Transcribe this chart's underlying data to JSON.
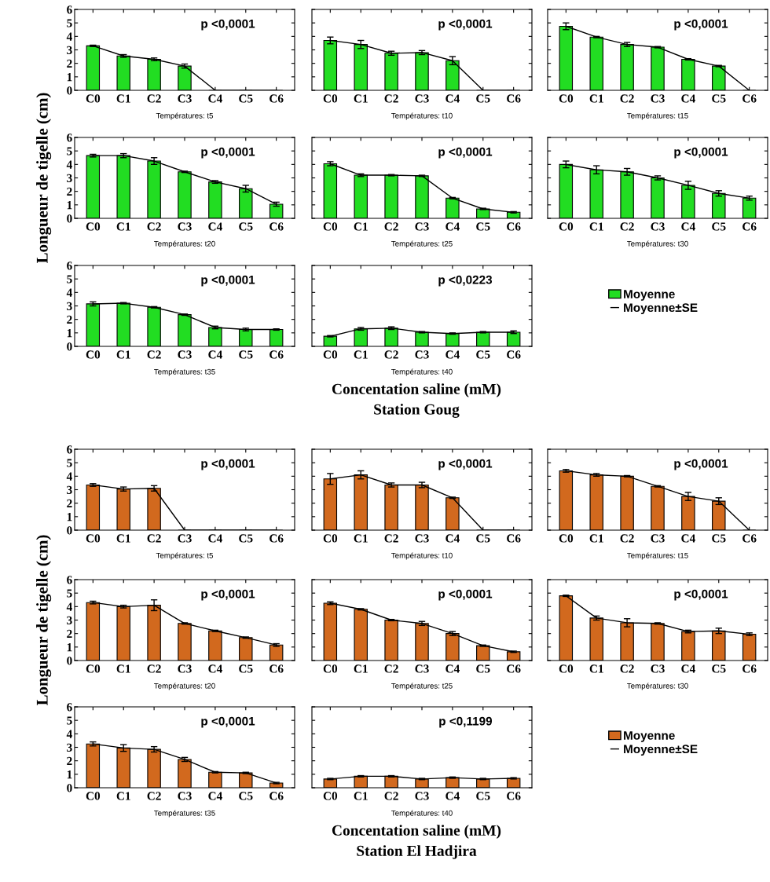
{
  "chart_data": [
    {
      "type": "bar",
      "categories": [
        "C0",
        "C1",
        "C2",
        "C3",
        "C4",
        "C5",
        "C6"
      ],
      "xlabel": "Températures: t5",
      "ylim": [
        0,
        6
      ],
      "yticks": [
        0,
        1,
        2,
        3,
        4,
        5,
        6
      ],
      "tick_labels": "xy",
      "annotations": [
        "p <0,0001"
      ],
      "series": [
        {
          "color": "#22dd22",
          "values": [
            3.3,
            2.55,
            2.3,
            1.8,
            0,
            0,
            0
          ],
          "errors": [
            0.05,
            0.1,
            0.1,
            0.15,
            null,
            null,
            null
          ]
        },
        {
          "type": "line",
          "color": "#000000",
          "values": [
            3.3,
            2.55,
            2.3,
            1.8,
            0,
            0,
            0
          ]
        }
      ]
    },
    {
      "type": "bar",
      "categories": [
        "C0",
        "C1",
        "C2",
        "C3",
        "C4",
        "C5",
        "C6"
      ],
      "xlabel": "Températures: t10",
      "ylim": [
        0,
        6
      ],
      "yticks": [
        0,
        1,
        2,
        3,
        4,
        5,
        6
      ],
      "tick_labels": "x",
      "annotations": [
        "p <0,0001"
      ],
      "series": [
        {
          "color": "#22dd22",
          "values": [
            3.7,
            3.4,
            2.75,
            2.8,
            2.2,
            0,
            0
          ],
          "errors": [
            0.25,
            0.3,
            0.15,
            0.15,
            0.3,
            null,
            null
          ]
        },
        {
          "type": "line",
          "color": "#000000",
          "values": [
            3.7,
            3.4,
            2.75,
            2.8,
            2.2,
            0,
            0
          ]
        }
      ]
    },
    {
      "type": "bar",
      "categories": [
        "C0",
        "C1",
        "C2",
        "C3",
        "C4",
        "C5",
        "C6"
      ],
      "xlabel": "Températures: t15",
      "ylim": [
        0,
        6
      ],
      "yticks": [
        0,
        1,
        2,
        3,
        4,
        5,
        6
      ],
      "tick_labels": "x",
      "annotations": [
        "p <0,0001"
      ],
      "series": [
        {
          "color": "#22dd22",
          "values": [
            4.75,
            3.95,
            3.4,
            3.2,
            2.3,
            1.8,
            0
          ],
          "errors": [
            0.25,
            0.05,
            0.15,
            0.05,
            0.05,
            0.05,
            null
          ]
        },
        {
          "type": "line",
          "color": "#000000",
          "values": [
            4.75,
            3.95,
            3.4,
            3.2,
            2.3,
            1.8,
            0
          ]
        }
      ]
    },
    {
      "type": "bar",
      "categories": [
        "C0",
        "C1",
        "C2",
        "C3",
        "C4",
        "C5",
        "C6"
      ],
      "xlabel": "Températures: t20",
      "ylabel": "Longueur de tigelle (cm)",
      "ylim": [
        0,
        6
      ],
      "yticks": [
        0,
        1,
        2,
        3,
        4,
        5,
        6
      ],
      "tick_labels": "xy",
      "annotations": [
        "p <0,0001"
      ],
      "series": [
        {
          "color": "#22dd22",
          "values": [
            4.65,
            4.65,
            4.25,
            3.45,
            2.7,
            2.2,
            1.05
          ],
          "errors": [
            0.1,
            0.15,
            0.25,
            0.05,
            0.1,
            0.25,
            0.15
          ]
        },
        {
          "type": "line",
          "color": "#000000",
          "values": [
            4.65,
            4.65,
            4.25,
            3.45,
            2.7,
            2.2,
            1.05
          ]
        }
      ]
    },
    {
      "type": "bar",
      "categories": [
        "C0",
        "C1",
        "C2",
        "C3",
        "C4",
        "C5",
        "C6"
      ],
      "xlabel": "Températures: t25",
      "ylim": [
        0,
        6
      ],
      "yticks": [
        0,
        1,
        2,
        3,
        4,
        5,
        6
      ],
      "tick_labels": "x",
      "annotations": [
        "p <0,0001"
      ],
      "series": [
        {
          "color": "#22dd22",
          "values": [
            4.05,
            3.2,
            3.2,
            3.15,
            1.5,
            0.7,
            0.45
          ],
          "errors": [
            0.15,
            0.1,
            0.05,
            0.05,
            0.05,
            0.05,
            0.05
          ]
        },
        {
          "type": "line",
          "color": "#000000",
          "values": [
            4.05,
            3.2,
            3.2,
            3.15,
            1.5,
            0.7,
            0.45
          ]
        }
      ]
    },
    {
      "type": "bar",
      "categories": [
        "C0",
        "C1",
        "C2",
        "C3",
        "C4",
        "C5",
        "C6"
      ],
      "xlabel": "Températures: t30",
      "ylim": [
        0,
        6
      ],
      "yticks": [
        0,
        1,
        2,
        3,
        4,
        5,
        6
      ],
      "tick_labels": "x",
      "annotations": [
        "p <0,0001"
      ],
      "series": [
        {
          "color": "#22dd22",
          "values": [
            4.0,
            3.6,
            3.45,
            3.0,
            2.45,
            1.85,
            1.5
          ],
          "errors": [
            0.25,
            0.3,
            0.25,
            0.15,
            0.3,
            0.2,
            0.15
          ]
        },
        {
          "type": "line",
          "color": "#000000",
          "values": [
            4.0,
            3.6,
            3.45,
            3.0,
            2.45,
            1.85,
            1.5
          ]
        }
      ]
    },
    {
      "type": "bar",
      "categories": [
        "C0",
        "C1",
        "C2",
        "C3",
        "C4",
        "C5",
        "C6"
      ],
      "xlabel": "Températures: t35",
      "ylim": [
        0,
        6
      ],
      "yticks": [
        0,
        1,
        2,
        3,
        4,
        5,
        6
      ],
      "tick_labels": "xy",
      "annotations": [
        "p <0,0001"
      ],
      "series": [
        {
          "color": "#22dd22",
          "values": [
            3.15,
            3.2,
            2.9,
            2.35,
            1.4,
            1.25,
            1.25
          ],
          "errors": [
            0.15,
            0.05,
            0.05,
            0.05,
            0.1,
            0.1,
            0.05
          ]
        },
        {
          "type": "line",
          "color": "#000000",
          "values": [
            3.15,
            3.2,
            2.9,
            2.35,
            1.4,
            1.25,
            1.25
          ]
        }
      ]
    },
    {
      "type": "bar",
      "categories": [
        "C0",
        "C1",
        "C2",
        "C3",
        "C4",
        "C5",
        "C6"
      ],
      "xlabel": "Températures: t40",
      "ylim": [
        0,
        6
      ],
      "yticks": [
        0,
        1,
        2,
        3,
        4,
        5,
        6
      ],
      "tick_labels": "x",
      "legend": "right",
      "annotations": [
        "p <0,0223",
        "Concentation saline (mM)",
        "Station Goug",
        "Moyenne±SE"
      ],
      "series": [
        {
          "name": "Moyenne",
          "color": "#22dd22",
          "values": [
            0.75,
            1.3,
            1.35,
            1.05,
            0.95,
            1.05,
            1.05
          ],
          "errors": [
            0.05,
            0.1,
            0.1,
            0.05,
            0.05,
            0.05,
            0.1
          ]
        },
        {
          "type": "line",
          "color": "#000000",
          "values": [
            0.75,
            1.3,
            1.35,
            1.05,
            0.95,
            1.05,
            1.05
          ]
        }
      ]
    },
    {
      "type": "bar",
      "categories": [
        "C0",
        "C1",
        "C2",
        "C3",
        "C4",
        "C5",
        "C6"
      ],
      "xlabel": "Températures: t5",
      "ylim": [
        0,
        6
      ],
      "yticks": [
        0,
        1,
        2,
        3,
        4,
        5,
        6
      ],
      "tick_labels": "xy",
      "annotations": [
        "p <0,0001"
      ],
      "series": [
        {
          "color": "#d2691e",
          "values": [
            3.35,
            3.05,
            3.1,
            0,
            0,
            0,
            0
          ],
          "errors": [
            0.1,
            0.15,
            0.2,
            null,
            null,
            null,
            null
          ]
        },
        {
          "type": "line",
          "color": "#000000",
          "values": [
            3.35,
            3.05,
            3.1,
            0,
            0,
            0,
            0
          ]
        }
      ]
    },
    {
      "type": "bar",
      "categories": [
        "C0",
        "C1",
        "C2",
        "C3",
        "C4",
        "C5",
        "C6"
      ],
      "xlabel": "Températures: t10",
      "ylim": [
        0,
        6
      ],
      "yticks": [
        0,
        1,
        2,
        3,
        4,
        5,
        6
      ],
      "tick_labels": "x",
      "annotations": [
        "p <0,0001"
      ],
      "series": [
        {
          "color": "#d2691e",
          "values": [
            3.8,
            4.1,
            3.35,
            3.35,
            2.4,
            0,
            0
          ],
          "errors": [
            0.4,
            0.3,
            0.15,
            0.2,
            0.05,
            null,
            null
          ]
        },
        {
          "type": "line",
          "color": "#000000",
          "values": [
            3.8,
            4.1,
            3.35,
            3.35,
            2.4,
            0,
            0
          ]
        }
      ]
    },
    {
      "type": "bar",
      "categories": [
        "C0",
        "C1",
        "C2",
        "C3",
        "C4",
        "C5",
        "C6"
      ],
      "xlabel": "Températures: t15",
      "ylim": [
        0,
        6
      ],
      "yticks": [
        0,
        1,
        2,
        3,
        4,
        5,
        6
      ],
      "tick_labels": "x",
      "annotations": [
        "p <0,0001"
      ],
      "series": [
        {
          "color": "#d2691e",
          "values": [
            4.4,
            4.1,
            4.0,
            3.25,
            2.5,
            2.15,
            0
          ],
          "errors": [
            0.1,
            0.1,
            0.05,
            0.05,
            0.3,
            0.25,
            null
          ]
        },
        {
          "type": "line",
          "color": "#000000",
          "values": [
            4.4,
            4.1,
            4.0,
            3.25,
            2.5,
            2.15,
            0
          ]
        }
      ]
    },
    {
      "type": "bar",
      "categories": [
        "C0",
        "C1",
        "C2",
        "C3",
        "C4",
        "C5",
        "C6"
      ],
      "xlabel": "Températures: t20",
      "ylabel": "Longueur de tigelle (cm)",
      "ylim": [
        0,
        6
      ],
      "yticks": [
        0,
        1,
        2,
        3,
        4,
        5,
        6
      ],
      "tick_labels": "xy",
      "annotations": [
        "p <0,0001"
      ],
      "series": [
        {
          "color": "#d2691e",
          "values": [
            4.3,
            4.0,
            4.1,
            2.75,
            2.2,
            1.7,
            1.15
          ],
          "errors": [
            0.1,
            0.1,
            0.4,
            0.05,
            0.05,
            0.05,
            0.1
          ]
        },
        {
          "type": "line",
          "color": "#000000",
          "values": [
            4.3,
            4.0,
            4.1,
            2.75,
            2.2,
            1.7,
            1.15
          ]
        }
      ]
    },
    {
      "type": "bar",
      "categories": [
        "C0",
        "C1",
        "C2",
        "C3",
        "C4",
        "C5",
        "C6"
      ],
      "xlabel": "Températures: t25",
      "ylim": [
        0,
        6
      ],
      "yticks": [
        0,
        1,
        2,
        3,
        4,
        5,
        6
      ],
      "tick_labels": "x",
      "annotations": [
        "p <0,0001"
      ],
      "series": [
        {
          "color": "#d2691e",
          "values": [
            4.25,
            3.8,
            3.0,
            2.75,
            2.0,
            1.1,
            0.65
          ],
          "errors": [
            0.1,
            0.05,
            0.05,
            0.15,
            0.15,
            0.05,
            0.05
          ]
        },
        {
          "type": "line",
          "color": "#000000",
          "values": [
            4.25,
            3.8,
            3.0,
            2.75,
            2.0,
            1.1,
            0.65
          ]
        }
      ]
    },
    {
      "type": "bar",
      "categories": [
        "C0",
        "C1",
        "C2",
        "C3",
        "C4",
        "C5",
        "C6"
      ],
      "xlabel": "Températures: t30",
      "ylim": [
        0,
        6
      ],
      "yticks": [
        0,
        1,
        2,
        3,
        4,
        5,
        6
      ],
      "tick_labels": "x",
      "annotations": [
        "p <0,0001"
      ],
      "series": [
        {
          "color": "#d2691e",
          "values": [
            4.8,
            3.15,
            2.8,
            2.75,
            2.15,
            2.2,
            1.95
          ],
          "errors": [
            0.05,
            0.15,
            0.3,
            0.05,
            0.1,
            0.2,
            0.1
          ]
        },
        {
          "type": "line",
          "color": "#000000",
          "values": [
            4.8,
            3.15,
            2.8,
            2.75,
            2.15,
            2.2,
            1.95
          ]
        }
      ]
    },
    {
      "type": "bar",
      "categories": [
        "C0",
        "C1",
        "C2",
        "C3",
        "C4",
        "C5",
        "C6"
      ],
      "xlabel": "Températures: t35",
      "ylim": [
        0,
        6
      ],
      "yticks": [
        0,
        1,
        2,
        3,
        4,
        5,
        6
      ],
      "tick_labels": "xy",
      "annotations": [
        "p <0,0001"
      ],
      "series": [
        {
          "color": "#d2691e",
          "values": [
            3.25,
            2.95,
            2.85,
            2.1,
            1.15,
            1.1,
            0.35
          ],
          "errors": [
            0.15,
            0.25,
            0.2,
            0.15,
            0.05,
            0.05,
            0.05
          ]
        },
        {
          "type": "line",
          "color": "#000000",
          "values": [
            3.25,
            2.95,
            2.85,
            2.1,
            1.15,
            1.1,
            0.35
          ]
        }
      ]
    },
    {
      "type": "bar",
      "categories": [
        "C0",
        "C1",
        "C2",
        "C3",
        "C4",
        "C5",
        "C6"
      ],
      "xlabel": "Températures: t40",
      "ylim": [
        0,
        6
      ],
      "yticks": [
        0,
        1,
        2,
        3,
        4,
        5,
        6
      ],
      "tick_labels": "x",
      "legend": "right",
      "annotations": [
        "p <0,1199",
        "Concentation saline (mM)",
        "Station El Hadjira",
        "Moyenne±SE"
      ],
      "series": [
        {
          "name": "Moyenne",
          "color": "#d2691e",
          "values": [
            0.65,
            0.85,
            0.85,
            0.65,
            0.75,
            0.65,
            0.7
          ],
          "errors": [
            0.05,
            0.05,
            0.05,
            0.05,
            0.05,
            0.05,
            0.05
          ]
        },
        {
          "type": "line",
          "color": "#000000",
          "values": [
            0.65,
            0.85,
            0.85,
            0.65,
            0.75,
            0.65,
            0.7
          ]
        }
      ]
    }
  ]
}
